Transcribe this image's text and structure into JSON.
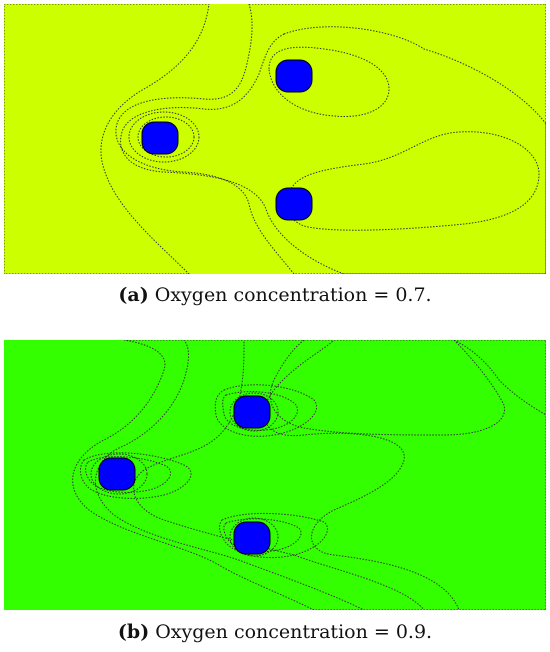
{
  "figure": {
    "panels": [
      {
        "id": "a",
        "caption_label": "(a)",
        "caption_text": "Oxygen concentration = 0.7.",
        "colors": {
          "far_left": "#ffff00",
          "band_1": "#ccff00",
          "band_2": "#99ff00",
          "band_3": "#33ff33",
          "band_4": "#00ff99",
          "band_5": "#00ffff",
          "particle": "#0000ff"
        }
      },
      {
        "id": "b",
        "caption_label": "(b)",
        "caption_text": "Oxygen concentration = 0.9.",
        "colors": {
          "far_left": "#33ff00",
          "band_1": "#99ff00",
          "band_2": "#ccff00",
          "band_3": "#ffff00",
          "band_4": "#ffcc00",
          "band_5": "#ff9900",
          "band_6": "#ff6600",
          "band_7": "#ff3300",
          "particle": "#0000ff"
        }
      }
    ]
  }
}
